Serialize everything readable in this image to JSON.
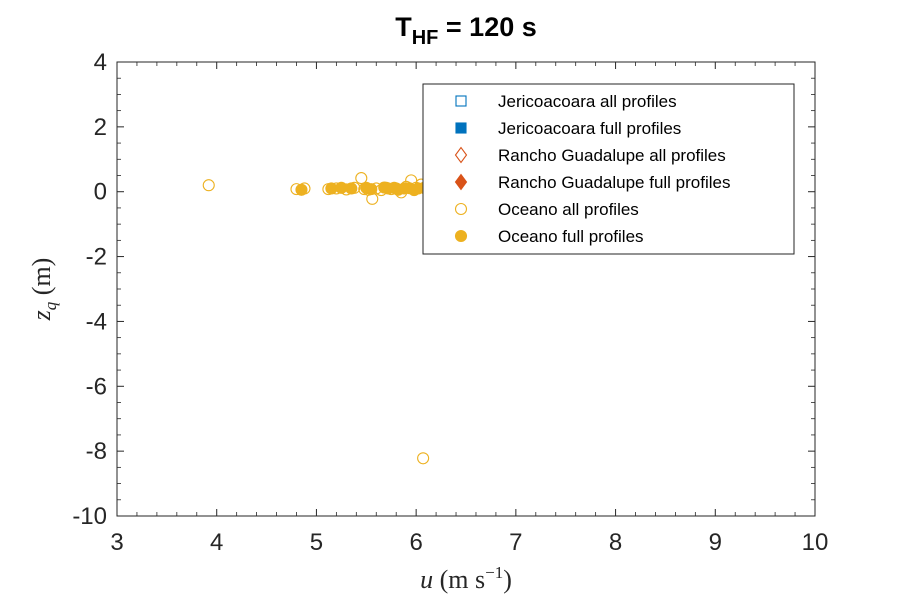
{
  "chart_data": {
    "type": "scatter",
    "title_main": "T",
    "title_sub": "HF",
    "title_rest": " = 120 s",
    "xlabel_var": "u",
    "xlabel_units": "(m s",
    "xlabel_exp": "−1",
    "xlabel_close": ")",
    "ylabel_var": "z",
    "ylabel_sub": "q",
    "ylabel_units": "(m)",
    "xlim": [
      3,
      10
    ],
    "ylim": [
      -10,
      4
    ],
    "xticks": [
      3,
      4,
      5,
      6,
      7,
      8,
      9,
      10
    ],
    "yticks": [
      4,
      2,
      0,
      -2,
      -4,
      -6,
      -8,
      -10
    ],
    "grid": false,
    "legend_position": "top-right",
    "legend": [
      {
        "label": "Jericoacoara all profiles",
        "marker": "square",
        "filled": false,
        "color": "#0072BD"
      },
      {
        "label": "Jericoacoara full profiles",
        "marker": "square",
        "filled": true,
        "color": "#0072BD"
      },
      {
        "label": "Rancho Guadalupe all profiles",
        "marker": "diamond",
        "filled": false,
        "color": "#D95319"
      },
      {
        "label": "Rancho Guadalupe full profiles",
        "marker": "diamond",
        "filled": true,
        "color": "#D95319"
      },
      {
        "label": "Oceano all profiles",
        "marker": "circle",
        "filled": false,
        "color": "#EDB120"
      },
      {
        "label": "Oceano full profiles",
        "marker": "circle",
        "filled": true,
        "color": "#EDB120"
      }
    ],
    "series": [
      {
        "name": "Oceano all profiles",
        "marker": "circle",
        "filled": false,
        "color": "#EDB120",
        "points": [
          [
            3.92,
            0.2
          ],
          [
            4.8,
            0.08
          ],
          [
            4.88,
            0.1
          ],
          [
            5.12,
            0.08
          ],
          [
            5.2,
            0.1
          ],
          [
            5.3,
            0.07
          ],
          [
            5.38,
            0.12
          ],
          [
            5.45,
            0.42
          ],
          [
            5.48,
            0.08
          ],
          [
            5.52,
            0.06
          ],
          [
            5.56,
            -0.22
          ],
          [
            5.6,
            0.1
          ],
          [
            5.65,
            0.05
          ],
          [
            5.7,
            0.12
          ],
          [
            5.75,
            0.08
          ],
          [
            5.8,
            0.1
          ],
          [
            5.85,
            -0.02
          ],
          [
            5.9,
            0.15
          ],
          [
            5.95,
            0.35
          ],
          [
            6.0,
            0.12
          ],
          [
            6.05,
            0.22
          ],
          [
            6.1,
            0.08
          ],
          [
            6.15,
            0.1
          ],
          [
            6.07,
            -8.22
          ]
        ]
      },
      {
        "name": "Oceano full profiles",
        "marker": "circle",
        "filled": true,
        "color": "#EDB120",
        "points": [
          [
            4.85,
            0.06
          ],
          [
            5.15,
            0.1
          ],
          [
            5.25,
            0.12
          ],
          [
            5.35,
            0.1
          ],
          [
            5.5,
            0.12
          ],
          [
            5.55,
            0.08
          ],
          [
            5.68,
            0.13
          ],
          [
            5.72,
            0.1
          ],
          [
            5.78,
            0.12
          ],
          [
            5.82,
            0.06
          ],
          [
            5.88,
            0.1
          ],
          [
            5.93,
            0.11
          ],
          [
            5.98,
            0.05
          ],
          [
            6.02,
            0.1
          ],
          [
            6.08,
            0.12
          ],
          [
            6.12,
            0.09
          ]
        ]
      }
    ]
  }
}
